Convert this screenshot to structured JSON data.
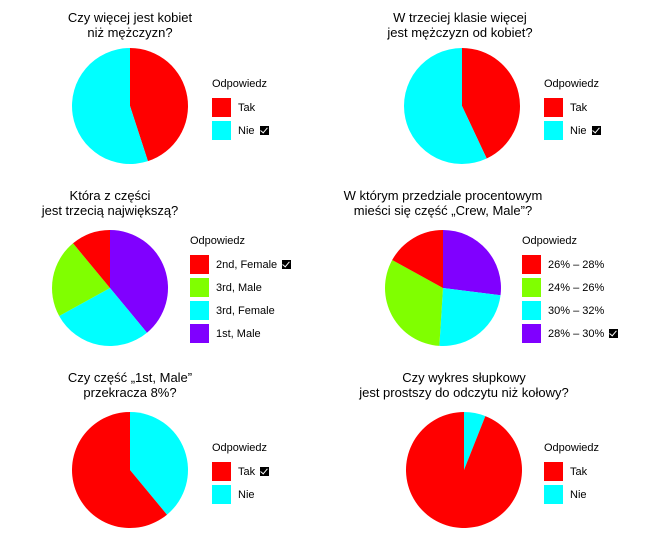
{
  "chart_data": [
    {
      "type": "pie",
      "title_lines": [
        "Czy więcej jest kobiet",
        "niż mężczyzn?"
      ],
      "legend_title": "Odpowiedz",
      "categories": [
        "Tak",
        "Nie"
      ],
      "values": [
        45,
        55
      ],
      "colors": [
        "#ff0000",
        "#00ffff"
      ],
      "checked_index": 1
    },
    {
      "type": "pie",
      "title_lines": [
        "W trzeciej klasie więcej",
        "jest mężczyzn od kobiet?"
      ],
      "legend_title": "Odpowiedz",
      "categories": [
        "Tak",
        "Nie"
      ],
      "values": [
        43,
        57
      ],
      "colors": [
        "#ff0000",
        "#00ffff"
      ],
      "checked_index": 1
    },
    {
      "type": "pie",
      "title_lines": [
        "Która z części",
        "jest trzecią największą?"
      ],
      "legend_title": "Odpowiedz",
      "categories": [
        "2nd, Female",
        "3rd, Male",
        "3rd, Female",
        "1st, Male"
      ],
      "values": [
        11,
        22,
        28,
        39
      ],
      "colors": [
        "#ff0000",
        "#80ff00",
        "#00ffff",
        "#8000ff"
      ],
      "order": [
        3,
        2,
        1,
        0
      ],
      "checked_index": 0
    },
    {
      "type": "pie",
      "title_lines": [
        "W którym przedziale procentowym",
        "mieści się część „Crew, Male”?"
      ],
      "legend_title": "Odpowiedz",
      "categories": [
        "26% – 28%",
        "24% – 26%",
        "30% – 32%",
        "28% – 30%"
      ],
      "values": [
        17,
        32,
        24,
        27
      ],
      "colors": [
        "#ff0000",
        "#80ff00",
        "#00ffff",
        "#8000ff"
      ],
      "order": [
        3,
        2,
        1,
        0
      ],
      "checked_index": 3
    },
    {
      "type": "pie",
      "title_lines": [
        "Czy część „1st, Male”",
        "przekracza 8%?"
      ],
      "legend_title": "Odpowiedz",
      "categories": [
        "Tak",
        "Nie"
      ],
      "values": [
        61,
        39
      ],
      "colors": [
        "#ff0000",
        "#00ffff"
      ],
      "order": [
        1,
        0
      ],
      "checked_index": 0
    },
    {
      "type": "pie",
      "title_lines": [
        "Czy wykres słupkowy",
        "jest prostszy do odczytu niż kołowy?"
      ],
      "legend_title": "Odpowiedz",
      "categories": [
        "Tak",
        "Nie"
      ],
      "values": [
        94,
        6
      ],
      "colors": [
        "#ff0000",
        "#00ffff"
      ],
      "order": [
        1,
        0
      ],
      "checked_index": -1
    }
  ]
}
